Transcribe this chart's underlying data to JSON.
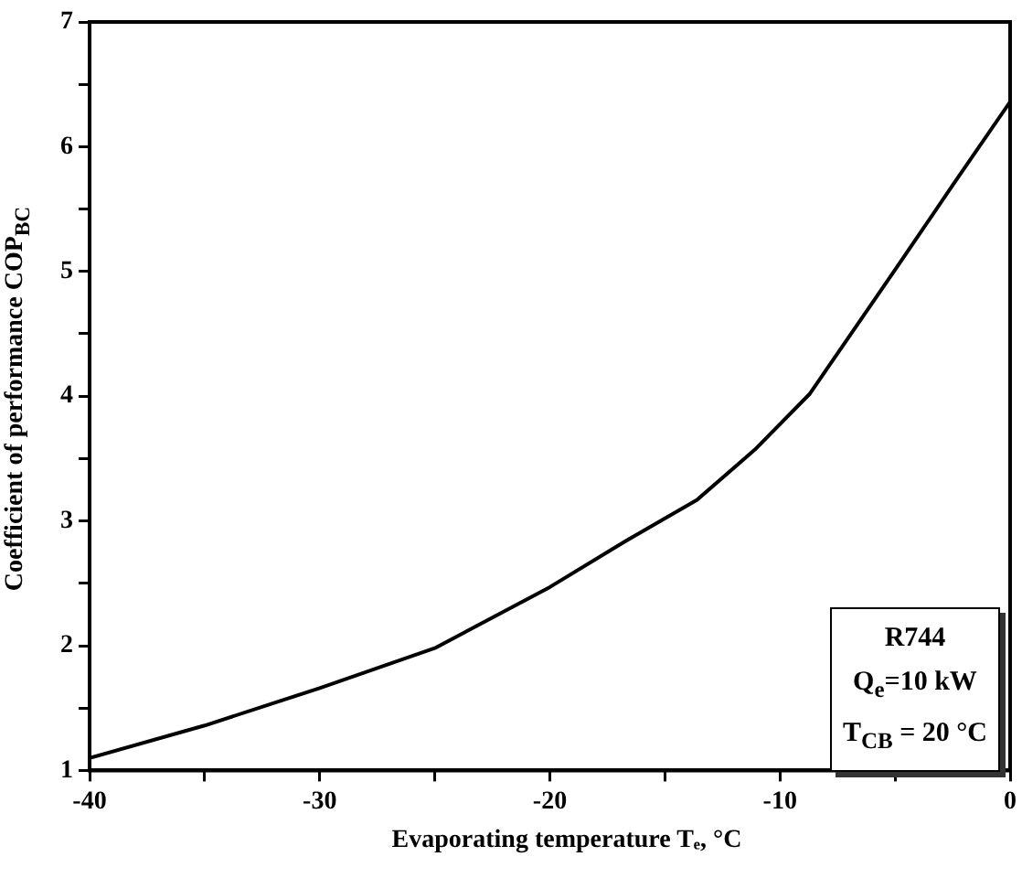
{
  "chart_data": {
    "type": "line",
    "xlabel": "Evaporating temperature Tₑ, °C",
    "ylabel": "Coefficient of performance COP$_{BC}$",
    "x": [
      -40,
      -35,
      -30,
      -25,
      -20,
      -16.7,
      -13.6,
      -11.1,
      -8.7,
      -4.9,
      -2.5,
      0
    ],
    "series": [
      {
        "color": "#000000",
        "values": [
          1.1,
          1.36,
          1.66,
          1.98,
          2.47,
          2.84,
          3.17,
          3.57,
          4.02,
          5.04,
          5.69,
          6.36
        ]
      }
    ],
    "xlim": [
      -40,
      0
    ],
    "xticks": [
      -40,
      {
        "value": -35,
        "label": null
      },
      -30,
      {
        "value": -25,
        "label": null
      },
      -20,
      {
        "value": -15,
        "label": null
      },
      -10,
      {
        "value": -5,
        "label": null
      },
      0
    ],
    "ylim": [
      1,
      7
    ],
    "yticks": [
      1,
      {
        "value": 1.5,
        "label": null
      },
      2,
      {
        "value": 2.5,
        "label": null
      },
      3,
      {
        "value": 3.5,
        "label": null
      },
      4,
      {
        "value": 4.5,
        "label": null
      },
      5,
      {
        "value": 5.5,
        "label": null
      },
      6,
      {
        "value": 6.5,
        "label": null
      },
      7
    ],
    "grid": false,
    "legend": false,
    "marker": "none",
    "line_style": "solid",
    "annotations": [
      "R744",
      "Q$_{e}$=10 kW",
      "T$_{CB}$ = 20 °C"
    ]
  }
}
